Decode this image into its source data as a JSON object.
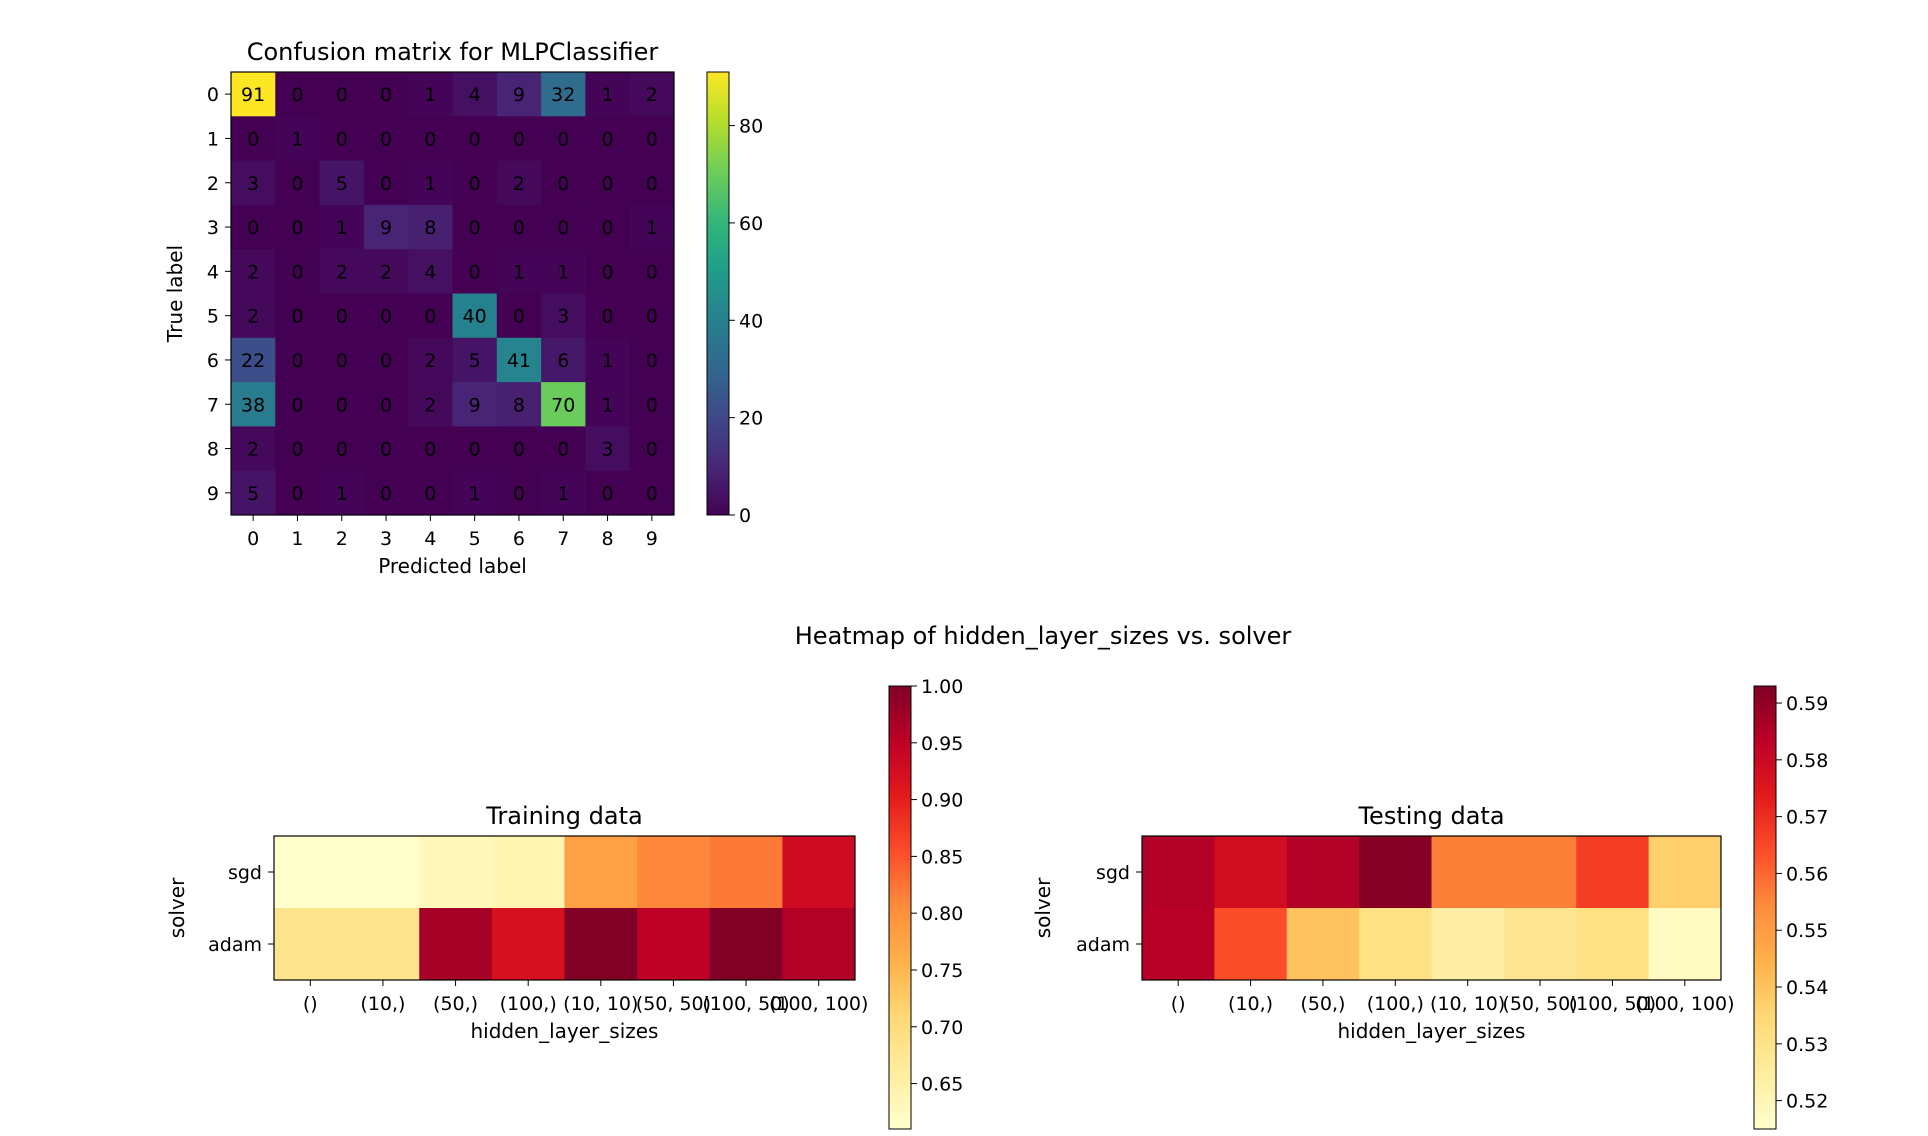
{
  "suptitle": "Heatmap of hidden_layer_sizes vs. solver",
  "chart_data": [
    {
      "type": "heatmap",
      "title": "Confusion matrix for MLPClassifier",
      "xlabel": "Predicted label",
      "ylabel": "True label",
      "x_ticks": [
        "0",
        "1",
        "2",
        "3",
        "4",
        "5",
        "6",
        "7",
        "8",
        "9"
      ],
      "y_ticks": [
        "0",
        "1",
        "2",
        "3",
        "4",
        "5",
        "6",
        "7",
        "8",
        "9"
      ],
      "values": [
        [
          91,
          0,
          0,
          0,
          1,
          4,
          9,
          32,
          1,
          2
        ],
        [
          0,
          1,
          0,
          0,
          0,
          0,
          0,
          0,
          0,
          0
        ],
        [
          3,
          0,
          5,
          0,
          1,
          0,
          2,
          0,
          0,
          0
        ],
        [
          0,
          0,
          1,
          9,
          8,
          0,
          0,
          0,
          0,
          1
        ],
        [
          2,
          0,
          2,
          2,
          4,
          0,
          1,
          1,
          0,
          0
        ],
        [
          2,
          0,
          0,
          0,
          0,
          40,
          0,
          3,
          0,
          0
        ],
        [
          22,
          0,
          0,
          0,
          2,
          5,
          41,
          6,
          1,
          0
        ],
        [
          38,
          0,
          0,
          0,
          2,
          9,
          8,
          70,
          1,
          0
        ],
        [
          2,
          0,
          0,
          0,
          0,
          0,
          0,
          0,
          3,
          0
        ],
        [
          5,
          0,
          1,
          0,
          0,
          1,
          0,
          1,
          0,
          0
        ]
      ],
      "colormap": "viridis",
      "vmin": 0,
      "vmax": 91,
      "colorbar_ticks": [
        "0",
        "20",
        "40",
        "60",
        "80"
      ],
      "cell_labels": true
    },
    {
      "type": "heatmap",
      "title": "Training data",
      "xlabel": "hidden_layer_sizes",
      "ylabel": "solver",
      "x_ticks": [
        "()",
        "(10,)",
        "(50,)",
        "(100,)",
        "(10, 10)",
        "(50, 50)",
        "(100, 50)",
        "(100, 100)"
      ],
      "y_ticks": [
        "sgd",
        "adam"
      ],
      "values": [
        [
          0.61,
          0.61,
          0.63,
          0.64,
          0.78,
          0.81,
          0.82,
          0.93
        ],
        [
          0.68,
          0.68,
          0.97,
          0.92,
          1.0,
          0.95,
          1.0,
          0.96
        ]
      ],
      "colormap": "YlOrRd",
      "vmin": 0.61,
      "vmax": 1.0,
      "colorbar_ticks": [
        "0.65",
        "0.70",
        "0.75",
        "0.80",
        "0.85",
        "0.90",
        "0.95",
        "1.00"
      ]
    },
    {
      "type": "heatmap",
      "title": "Testing data",
      "xlabel": "hidden_layer_sizes",
      "ylabel": "solver",
      "x_ticks": [
        "()",
        "(10,)",
        "(50,)",
        "(100,)",
        "(10, 10)",
        "(50, 50)",
        "(100, 50)",
        "(100, 100)"
      ],
      "y_ticks": [
        "sgd",
        "adam"
      ],
      "values": [
        [
          0.585,
          0.578,
          0.585,
          0.592,
          0.556,
          0.556,
          0.567,
          0.537
        ],
        [
          0.584,
          0.564,
          0.54,
          0.531,
          0.524,
          0.528,
          0.531,
          0.517
        ]
      ],
      "colormap": "YlOrRd",
      "vmin": 0.515,
      "vmax": 0.593,
      "colorbar_ticks": [
        "0.52",
        "0.53",
        "0.54",
        "0.55",
        "0.56",
        "0.57",
        "0.58",
        "0.59"
      ]
    }
  ]
}
